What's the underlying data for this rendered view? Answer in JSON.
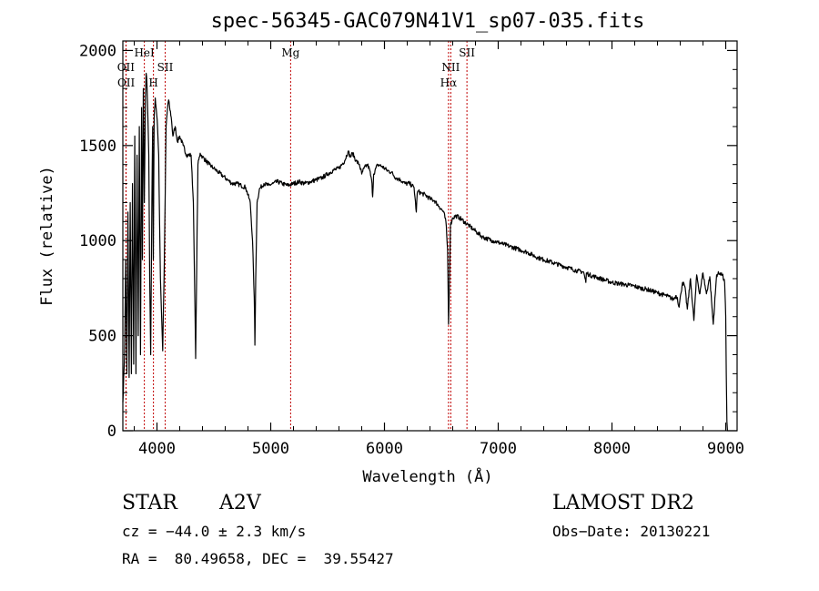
{
  "chart_data": {
    "type": "line",
    "title": "spec-56345-GAC079N41V1_sp07-035.fits",
    "xlabel": "Wavelength (Å)",
    "ylabel": "Flux (relative)",
    "xlim": [
      3700,
      9100
    ],
    "ylim": [
      0,
      2050
    ],
    "x_ticks": [
      4000,
      5000,
      6000,
      7000,
      8000,
      9000
    ],
    "x_tick_labels": [
      "4000",
      "5000",
      "6000",
      "7000",
      "8000",
      "9000"
    ],
    "y_ticks": [
      0,
      500,
      1000,
      1500,
      2000
    ],
    "y_tick_labels": [
      "0",
      "500",
      "1000",
      "1500",
      "2000"
    ],
    "grid": false,
    "line_color": "#000000",
    "marker_color": "#c00000",
    "series": [
      {
        "name": "flux",
        "x": [
          3700,
          3715,
          3725,
          3735,
          3745,
          3755,
          3765,
          3775,
          3785,
          3795,
          3805,
          3815,
          3825,
          3835,
          3845,
          3855,
          3865,
          3872,
          3880,
          3889,
          3898,
          3905,
          3912,
          3920,
          3928,
          3936,
          3945,
          3955,
          3962,
          3968,
          3975,
          3985,
          3995,
          4005,
          4015,
          4030,
          4050,
          4065,
          4080,
          4093,
          4102,
          4111,
          4125,
          4140,
          4160,
          4180,
          4200,
          4230,
          4260,
          4300,
          4320,
          4335,
          4340,
          4346,
          4360,
          4380,
          4400,
          4430,
          4460,
          4500,
          4540,
          4580,
          4620,
          4660,
          4700,
          4740,
          4780,
          4820,
          4840,
          4855,
          4861,
          4868,
          4880,
          4900,
          4940,
          4980,
          5020,
          5060,
          5100,
          5150,
          5200,
          5250,
          5300,
          5350,
          5400,
          5450,
          5500,
          5550,
          5600,
          5650,
          5680,
          5700,
          5720,
          5750,
          5780,
          5800,
          5820,
          5850,
          5870,
          5890,
          5896,
          5905,
          5940,
          5980,
          6020,
          6060,
          6100,
          6140,
          6180,
          6220,
          6260,
          6280,
          6288,
          6296,
          6320,
          6360,
          6400,
          6440,
          6480,
          6520,
          6540,
          6555,
          6563,
          6570,
          6580,
          6600,
          6630,
          6660,
          6700,
          6740,
          6780,
          6820,
          6860,
          6900,
          6950,
          7000,
          7050,
          7100,
          7150,
          7200,
          7250,
          7300,
          7350,
          7400,
          7450,
          7500,
          7550,
          7600,
          7650,
          7700,
          7750,
          7770,
          7775,
          7780,
          7800,
          7850,
          7900,
          7950,
          8000,
          8050,
          8100,
          8150,
          8200,
          8250,
          8300,
          8350,
          8400,
          8450,
          8500,
          8540,
          8560,
          8575,
          8590,
          8605,
          8620,
          8640,
          8662,
          8690,
          8720,
          8745,
          8770,
          8800,
          8830,
          8860,
          8890,
          8920,
          8950,
          8970,
          8990,
          9000,
          9005,
          9010,
          9015
        ],
        "y": [
          150,
          400,
          900,
          300,
          1150,
          280,
          1200,
          300,
          1300,
          350,
          1550,
          300,
          1450,
          500,
          1600,
          400,
          1700,
          900,
          1800,
          1200,
          1750,
          1880,
          1820,
          1650,
          1450,
          800,
          400,
          1200,
          1600,
          900,
          1650,
          1750,
          1680,
          1600,
          1450,
          800,
          420,
          900,
          1600,
          1700,
          1740,
          1700,
          1650,
          1550,
          1600,
          1520,
          1550,
          1500,
          1450,
          1450,
          1200,
          600,
          380,
          700,
          1400,
          1460,
          1440,
          1420,
          1400,
          1380,
          1360,
          1340,
          1320,
          1300,
          1300,
          1290,
          1280,
          1200,
          1000,
          700,
          450,
          800,
          1200,
          1270,
          1300,
          1290,
          1300,
          1310,
          1300,
          1290,
          1300,
          1310,
          1300,
          1310,
          1320,
          1330,
          1350,
          1370,
          1380,
          1420,
          1470,
          1440,
          1460,
          1420,
          1400,
          1350,
          1380,
          1400,
          1370,
          1300,
          1230,
          1350,
          1400,
          1390,
          1370,
          1360,
          1330,
          1320,
          1300,
          1300,
          1280,
          1150,
          1250,
          1260,
          1250,
          1240,
          1220,
          1210,
          1180,
          1150,
          1100,
          950,
          560,
          750,
          1080,
          1120,
          1130,
          1120,
          1100,
          1080,
          1060,
          1040,
          1020,
          1010,
          1000,
          990,
          980,
          970,
          960,
          950,
          940,
          925,
          910,
          900,
          890,
          880,
          870,
          860,
          850,
          840,
          835,
          780,
          830,
          830,
          820,
          810,
          800,
          790,
          780,
          775,
          770,
          765,
          760,
          750,
          745,
          735,
          725,
          715,
          705,
          690,
          710,
          700,
          650,
          720,
          780,
          760,
          640,
          800,
          580,
          820,
          720,
          830,
          720,
          810,
          560,
          820,
          830,
          820,
          780,
          600,
          300,
          50,
          0
        ]
      }
    ],
    "line_markers": [
      {
        "x": 3727,
        "label": "OII",
        "row": 2
      },
      {
        "x": 3729,
        "label": "OII",
        "row": 3
      },
      {
        "x": 3889,
        "label": "HeI",
        "row": 1
      },
      {
        "x": 3969,
        "label": "H",
        "row": 3
      },
      {
        "x": 4072,
        "label": "SII",
        "row": 2
      },
      {
        "x": 5175,
        "label": "Mg",
        "row": 1
      },
      {
        "x": 6563,
        "label": "Hα",
        "row": 3
      },
      {
        "x": 6583,
        "label": "NII",
        "row": 2
      },
      {
        "x": 6725,
        "label": "SII",
        "row": 1
      }
    ]
  },
  "info": {
    "class": "STAR",
    "subclass": "A2V",
    "survey": "LAMOST DR2",
    "cz": "cz = −44.0 ± 2.3 km/s",
    "obs_date": "Obs−Date: 20130221",
    "radec": "RA =  80.49658, DEC =  39.55427"
  }
}
